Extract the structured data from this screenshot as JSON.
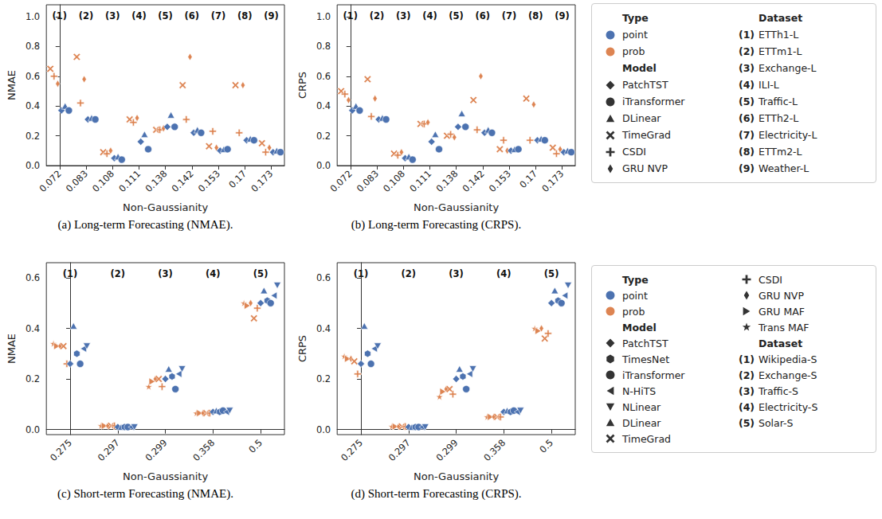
{
  "chart_data": [
    {
      "type": "scatter",
      "caption": "(a) Long-term Forecasting (NMAE).",
      "x_label": "Non-Gaussianity",
      "y_label": "NMAE",
      "categories": [
        "0.072",
        "0.083",
        "0.108",
        "0.111",
        "0.138",
        "0.142",
        "0.153",
        "0.17",
        "0.173"
      ],
      "dataset_labels": [
        "(1)",
        "(2)",
        "(3)",
        "(4)",
        "(5)",
        "(6)",
        "(7)",
        "(8)",
        "(9)"
      ],
      "ylim": [
        0,
        1.08
      ],
      "yticks": [
        {
          "value": 0,
          "label": "0.0"
        },
        0.2,
        0.4,
        0.6,
        0.8,
        {
          "value": 1,
          "label": "1.0"
        }
      ],
      "grid": false,
      "series": [
        {
          "name": "TimeGrad",
          "color": "#dd8452",
          "marker": "x",
          "values": [
            0.65,
            0.73,
            0.09,
            0.31,
            0.24,
            0.54,
            0.13,
            0.54,
            0.15
          ]
        },
        {
          "name": "CSDI",
          "color": "#dd8452",
          "marker": "plus",
          "values": [
            0.6,
            0.42,
            0.08,
            0.29,
            0.24,
            0.31,
            0.23,
            0.22,
            0.09
          ]
        },
        {
          "name": "GRU NVP",
          "color": "#dd8452",
          "marker": "thin_diamond",
          "values": [
            0.55,
            0.58,
            0.1,
            0.32,
            0.25,
            0.73,
            0.12,
            0.54,
            0.12
          ]
        },
        {
          "name": "PatchTST",
          "color": "#4c72b0",
          "marker": "diamond",
          "values": [
            0.37,
            0.31,
            0.05,
            0.16,
            0.26,
            0.22,
            0.1,
            0.17,
            0.09
          ]
        },
        {
          "name": "DLinear",
          "color": "#4c72b0",
          "marker": "triangle",
          "values": [
            0.4,
            0.32,
            0.06,
            0.21,
            0.34,
            0.24,
            0.11,
            0.18,
            0.1
          ]
        },
        {
          "name": "iTransformer",
          "color": "#4c72b0",
          "marker": "circle",
          "values": [
            0.37,
            0.31,
            0.04,
            0.11,
            0.26,
            0.22,
            0.11,
            0.17,
            0.09
          ]
        }
      ]
    },
    {
      "type": "scatter",
      "caption": "(b) Long-term Forecasting (CRPS).",
      "x_label": "Non-Gaussianity",
      "y_label": "CRPS",
      "categories": [
        "0.072",
        "0.083",
        "0.108",
        "0.111",
        "0.138",
        "0.142",
        "0.153",
        "0.17",
        "0.173"
      ],
      "dataset_labels": [
        "(1)",
        "(2)",
        "(3)",
        "(4)",
        "(5)",
        "(6)",
        "(7)",
        "(8)",
        "(9)"
      ],
      "ylim": [
        0,
        1.08
      ],
      "yticks": [
        {
          "value": 0,
          "label": "0.0"
        },
        0.2,
        0.4,
        0.6,
        0.8,
        {
          "value": 1,
          "label": "1.0"
        }
      ],
      "grid": false,
      "series": [
        {
          "name": "TimeGrad",
          "color": "#dd8452",
          "marker": "x",
          "values": [
            0.5,
            0.58,
            0.08,
            0.28,
            0.2,
            0.44,
            0.11,
            0.45,
            0.12
          ]
        },
        {
          "name": "CSDI",
          "color": "#dd8452",
          "marker": "plus",
          "values": [
            0.48,
            0.33,
            0.07,
            0.28,
            0.21,
            0.24,
            0.17,
            0.17,
            0.08
          ]
        },
        {
          "name": "GRU NVP",
          "color": "#dd8452",
          "marker": "thin_diamond",
          "values": [
            0.44,
            0.45,
            0.09,
            0.29,
            0.19,
            0.6,
            0.1,
            0.41,
            0.11
          ]
        },
        {
          "name": "PatchTST",
          "color": "#4c72b0",
          "marker": "diamond",
          "values": [
            0.37,
            0.31,
            0.05,
            0.16,
            0.26,
            0.22,
            0.1,
            0.17,
            0.09
          ]
        },
        {
          "name": "DLinear",
          "color": "#4c72b0",
          "marker": "triangle",
          "values": [
            0.4,
            0.32,
            0.06,
            0.21,
            0.35,
            0.24,
            0.11,
            0.18,
            0.1
          ]
        },
        {
          "name": "iTransformer",
          "color": "#4c72b0",
          "marker": "circle",
          "values": [
            0.37,
            0.31,
            0.04,
            0.11,
            0.26,
            0.22,
            0.11,
            0.17,
            0.09
          ]
        }
      ]
    },
    {
      "type": "scatter",
      "caption": "(c) Short-term Forecasting (NMAE).",
      "x_label": "Non-Gaussianity",
      "y_label": "NMAE",
      "categories": [
        "0.275",
        "0.297",
        "0.299",
        "0.358",
        "0.5"
      ],
      "dataset_labels": [
        "(1)",
        "(2)",
        "(3)",
        "(4)",
        "(5)"
      ],
      "ylim": [
        -0.02,
        0.66
      ],
      "yticks": [
        {
          "value": 0,
          "label": "0.0"
        },
        0.2,
        0.4,
        0.6
      ],
      "grid": false,
      "series": [
        {
          "name": "Trans MAF",
          "color": "#dd8452",
          "marker": "star",
          "values": [
            0.34,
            0.015,
            0.17,
            0.065,
            0.5
          ]
        },
        {
          "name": "GRU MAF",
          "color": "#dd8452",
          "marker": "triangle_right",
          "values": [
            0.33,
            0.015,
            0.19,
            0.065,
            0.49
          ]
        },
        {
          "name": "GRU NVP",
          "color": "#dd8452",
          "marker": "thin_diamond",
          "values": [
            0.33,
            0.015,
            0.2,
            0.065,
            0.5
          ]
        },
        {
          "name": "TimeGrad",
          "color": "#dd8452",
          "marker": "x",
          "values": [
            0.33,
            0.015,
            0.2,
            0.065,
            0.44
          ]
        },
        {
          "name": "CSDI",
          "color": "#dd8452",
          "marker": "plus",
          "values": [
            0.26,
            0.015,
            0.17,
            0.065,
            0.48
          ]
        },
        {
          "name": "PatchTST",
          "color": "#4c72b0",
          "marker": "diamond",
          "values": [
            0.26,
            0.01,
            0.2,
            0.07,
            0.5
          ]
        },
        {
          "name": "DLinear",
          "color": "#4c72b0",
          "marker": "triangle",
          "values": [
            0.41,
            0.01,
            0.24,
            0.075,
            0.55
          ]
        },
        {
          "name": "TimesNet",
          "color": "#4c72b0",
          "marker": "hexagon",
          "values": [
            0.3,
            0.01,
            0.21,
            0.07,
            0.51
          ]
        },
        {
          "name": "iTransformer",
          "color": "#4c72b0",
          "marker": "circle",
          "values": [
            0.26,
            0.01,
            0.16,
            0.075,
            0.5
          ]
        },
        {
          "name": "N-HiTS",
          "color": "#4c72b0",
          "marker": "triangle_left",
          "values": [
            0.32,
            0.01,
            0.22,
            0.07,
            0.53
          ]
        },
        {
          "name": "NLinear",
          "color": "#4c72b0",
          "marker": "triangle_down",
          "values": [
            0.33,
            0.01,
            0.24,
            0.075,
            0.57
          ]
        }
      ]
    },
    {
      "type": "scatter",
      "caption": "(d) Short-term Forecasting (CRPS).",
      "x_label": "Non-Gaussianity",
      "y_label": "CRPS",
      "categories": [
        "0.275",
        "0.297",
        "0.299",
        "0.358",
        "0.5"
      ],
      "dataset_labels": [
        "(1)",
        "(2)",
        "(3)",
        "(4)",
        "(5)"
      ],
      "ylim": [
        -0.02,
        0.66
      ],
      "yticks": [
        {
          "value": 0,
          "label": "0.0"
        },
        0.2,
        0.4,
        0.6
      ],
      "grid": false,
      "series": [
        {
          "name": "Trans MAF",
          "color": "#dd8452",
          "marker": "star",
          "values": [
            0.29,
            0.012,
            0.13,
            0.05,
            0.4
          ]
        },
        {
          "name": "GRU MAF",
          "color": "#dd8452",
          "marker": "triangle_right",
          "values": [
            0.28,
            0.012,
            0.15,
            0.05,
            0.39
          ]
        },
        {
          "name": "GRU NVP",
          "color": "#dd8452",
          "marker": "thin_diamond",
          "values": [
            0.28,
            0.012,
            0.16,
            0.05,
            0.4
          ]
        },
        {
          "name": "TimeGrad",
          "color": "#dd8452",
          "marker": "x",
          "values": [
            0.27,
            0.012,
            0.16,
            0.05,
            0.36
          ]
        },
        {
          "name": "CSDI",
          "color": "#dd8452",
          "marker": "plus",
          "values": [
            0.22,
            0.012,
            0.14,
            0.05,
            0.38
          ]
        },
        {
          "name": "PatchTST",
          "color": "#4c72b0",
          "marker": "diamond",
          "values": [
            0.26,
            0.01,
            0.2,
            0.07,
            0.5
          ]
        },
        {
          "name": "DLinear",
          "color": "#4c72b0",
          "marker": "triangle",
          "values": [
            0.41,
            0.01,
            0.24,
            0.075,
            0.55
          ]
        },
        {
          "name": "TimesNet",
          "color": "#4c72b0",
          "marker": "hexagon",
          "values": [
            0.3,
            0.01,
            0.21,
            0.07,
            0.51
          ]
        },
        {
          "name": "iTransformer",
          "color": "#4c72b0",
          "marker": "circle",
          "values": [
            0.26,
            0.01,
            0.16,
            0.075,
            0.5
          ]
        },
        {
          "name": "N-HiTS",
          "color": "#4c72b0",
          "marker": "triangle_left",
          "values": [
            0.32,
            0.01,
            0.22,
            0.07,
            0.53
          ]
        },
        {
          "name": "NLinear",
          "color": "#4c72b0",
          "marker": "triangle_down",
          "values": [
            0.33,
            0.01,
            0.24,
            0.075,
            0.57
          ]
        }
      ]
    }
  ],
  "legend_panels": [
    [
      {
        "heading": "Type"
      },
      {
        "name": "point",
        "color": "#4c72b0",
        "marker": "circle"
      },
      {
        "name": "prob",
        "color": "#dd8452",
        "marker": "circle"
      },
      {
        "heading": "Model"
      },
      {
        "name": "PatchTST",
        "marker": "diamond"
      },
      {
        "name": "iTransformer",
        "marker": "circle"
      },
      {
        "name": "DLinear",
        "marker": "triangle"
      },
      {
        "name": "TimeGrad",
        "marker": "x"
      },
      {
        "name": "CSDI",
        "marker": "plus"
      },
      {
        "name": "GRU NVP",
        "marker": "thin_diamond"
      },
      {
        "heading": "Dataset"
      },
      {
        "label": "(1)",
        "name": "ETTh1-L"
      },
      {
        "label": "(2)",
        "name": "ETTm1-L"
      },
      {
        "label": "(3)",
        "name": "Exchange-L"
      },
      {
        "label": "(4)",
        "name": "ILI-L"
      },
      {
        "label": "(5)",
        "name": "Traffic-L"
      },
      {
        "label": "(6)",
        "name": "ETTh2-L"
      },
      {
        "label": "(7)",
        "name": "Electricity-L"
      },
      {
        "label": "(8)",
        "name": "ETTm2-L"
      },
      {
        "label": "(9)",
        "name": "Weather-L"
      }
    ],
    [
      {
        "heading": "Type"
      },
      {
        "name": "point",
        "color": "#4c72b0",
        "marker": "circle"
      },
      {
        "name": "prob",
        "color": "#dd8452",
        "marker": "circle"
      },
      {
        "heading": "Model"
      },
      {
        "name": "PatchTST",
        "marker": "diamond"
      },
      {
        "name": "TimesNet",
        "marker": "hexagon"
      },
      {
        "name": "iTransformer",
        "marker": "circle"
      },
      {
        "name": "N-HiTS",
        "marker": "triangle_left"
      },
      {
        "name": "NLinear",
        "marker": "triangle_down"
      },
      {
        "name": "DLinear",
        "marker": "triangle"
      },
      {
        "name": "TimeGrad",
        "marker": "x"
      },
      {
        "name": "CSDI",
        "marker": "plus"
      },
      {
        "name": "GRU NVP",
        "marker": "thin_diamond"
      },
      {
        "name": "GRU MAF",
        "marker": "triangle_right"
      },
      {
        "name": "Trans MAF",
        "marker": "star"
      },
      {
        "heading": "Dataset"
      },
      {
        "label": "(1)",
        "name": "Wikipedia-S"
      },
      {
        "label": "(2)",
        "name": "Exchange-S"
      },
      {
        "label": "(3)",
        "name": "Traffic-S"
      },
      {
        "label": "(4)",
        "name": "Electricity-S"
      },
      {
        "label": "(5)",
        "name": "Solar-S"
      }
    ]
  ]
}
